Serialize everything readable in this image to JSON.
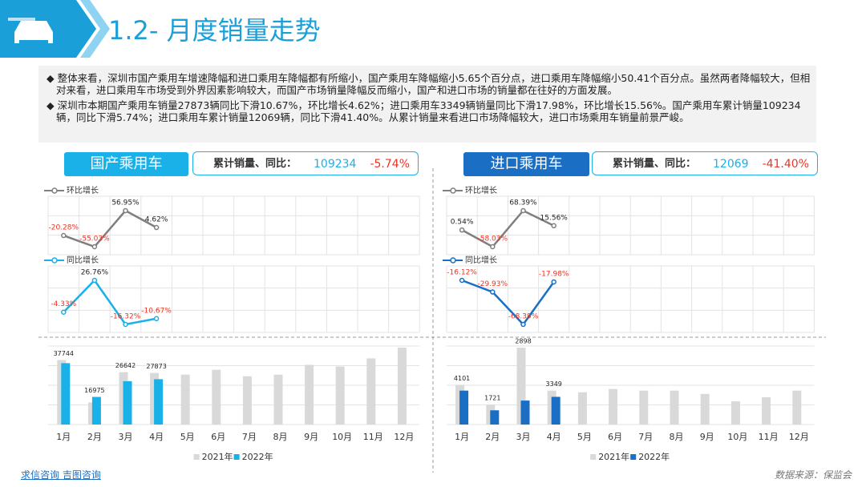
{
  "header": {
    "title": "1.2- 月度销量走势"
  },
  "bullets": [
    "◆ 整体来看，深圳市国产乘用车增速降幅和进口乘用车降幅都有所缩小，国产乘用车降幅缩小5.65个百分点，进口乘用车降幅缩小50.41个百分点。虽然两者降幅较大，但相对来看，进口乘用车市场受到外界因素影响较大，而国产市场销量降幅反而缩小，国产和进口市场的销量都在往好的方面发展。",
    "◆ 深圳市本期国产乘用车销量27873辆同比下滑10.67%，环比增长4.62%；进口乘用车3349辆销量同比下滑17.98%，环比增长15.56%。国产乘用车累计销量109234辆，同比下滑5.74%；进口乘用车累计销量12069辆，同比下滑41.40%。从累计销量来看进口市场降幅较大，进口市场乘用车销量前景严峻。"
  ],
  "panels": [
    {
      "tag": "国产乘用车",
      "summary_label": "累计销量、同比：",
      "total": 109234,
      "change": "-5.74%",
      "mom": {
        "type": "line",
        "series": [
          {
            "name": "环比增长",
            "color": "#7f7f7f",
            "values": [
              -20.28,
              -55.03,
              56.95,
              4.62
            ],
            "value_labels": [
              "-20.28%",
              "-55.03%",
              "56.95%",
              "4.62%"
            ]
          }
        ]
      },
      "yoy": {
        "type": "line",
        "series": [
          {
            "name": "同比增长",
            "color": "#1ab0e8",
            "values": [
              -4.33,
              26.76,
              -16.32,
              -10.67
            ],
            "value_labels": [
              "-4.33%",
              "26.76%",
              "-16.32%",
              "-10.67%"
            ]
          }
        ]
      },
      "bars": {
        "type": "bar",
        "categories": [
          "1月",
          "2月",
          "3月",
          "4月",
          "5月",
          "6月",
          "7月",
          "8月",
          "9月",
          "10月",
          "11月",
          "12月"
        ],
        "series": [
          {
            "name": "2021年",
            "color": "#d9d9d9",
            "values": [
              39700,
              13600,
              32200,
              31700,
              30700,
              33700,
              29700,
              30700,
              36700,
              35700,
              40700,
              47300
            ]
          },
          {
            "name": "2022年",
            "color": "#1ab0e8",
            "values": [
              37744,
              16975,
              26642,
              27873
            ]
          }
        ]
      }
    },
    {
      "tag": "进口乘用车",
      "summary_label": "累计销量、同比：",
      "total": 12069,
      "change": "-41.40%",
      "mom": {
        "type": "line",
        "series": [
          {
            "name": "环比增长",
            "color": "#7f7f7f",
            "values": [
              0.54,
              -58.03,
              68.39,
              15.56
            ],
            "value_labels": [
              "0.54%",
              "-58.03%",
              "68.39%",
              "15.56%"
            ]
          }
        ]
      },
      "yoy": {
        "type": "line",
        "series": [
          {
            "name": "同比增长",
            "color": "#1a6fc4",
            "values": [
              -16.12,
              -29.93,
              -68.39,
              -17.98
            ],
            "value_labels": [
              "-16.12%",
              "-29.93%",
              "-68.39%",
              "-17.98%"
            ]
          }
        ]
      },
      "bars": {
        "type": "bar",
        "categories": [
          "1月",
          "2月",
          "3月",
          "4月",
          "5月",
          "6月",
          "7月",
          "8月",
          "9月",
          "10月",
          "11月",
          "12月"
        ],
        "series": [
          {
            "name": "2021年",
            "color": "#d9d9d9",
            "values": [
              4800,
              2400,
              9300,
              4100,
              3900,
              4300,
              4100,
              4100,
              3700,
              2800,
              3300,
              4100
            ]
          },
          {
            "name": "2022年",
            "color": "#1a6fc4",
            "values": [
              4101,
              1721,
              2898,
              3349
            ]
          }
        ]
      }
    }
  ],
  "footer": {
    "links": [
      "求信咨询",
      "吉图咨询"
    ],
    "source": "数据来源：保监会"
  }
}
